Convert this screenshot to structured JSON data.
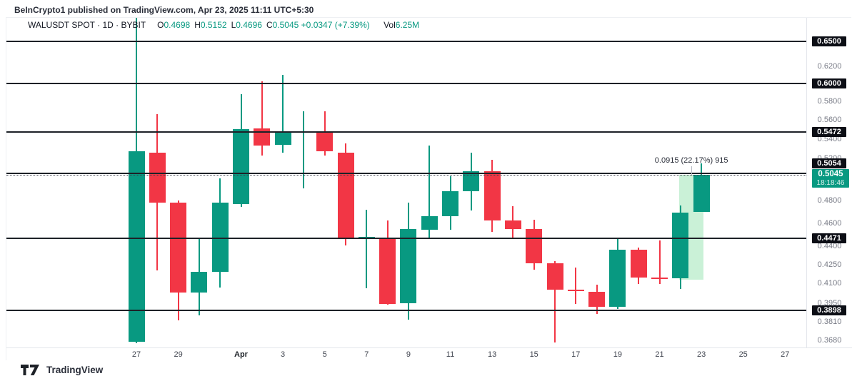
{
  "attribution": "BeInCrypto1 published on TradingView.com, Apr 23, 2025 11:11 UTC+5:30",
  "symbol_bar": {
    "title": "WALUSDT SPOT · 1D · BYBIT",
    "ohlc": [
      {
        "k": "O",
        "v": "0.4698"
      },
      {
        "k": "H",
        "v": "0.5152"
      },
      {
        "k": "L",
        "v": "0.4696"
      },
      {
        "k": "C",
        "v": "0.5045"
      }
    ],
    "change": "+0.0347 (+7.39%)",
    "vol_label": "Vol",
    "vol_value": "6.25M"
  },
  "price_axis": {
    "currency": "USDT",
    "gray_ticks": [
      {
        "label": "0.6200",
        "value": 0.62
      },
      {
        "label": "0.5800",
        "value": 0.58
      },
      {
        "label": "0.5600",
        "value": 0.56
      },
      {
        "label": "0.5400",
        "value": 0.54
      },
      {
        "label": "0.5200",
        "value": 0.52
      },
      {
        "label": "0.4800",
        "value": 0.48
      },
      {
        "label": "0.4600",
        "value": 0.46
      },
      {
        "label": "0.4400",
        "value": 0.44
      },
      {
        "label": "0.4250",
        "value": 0.425
      },
      {
        "label": "0.4100",
        "value": 0.41
      },
      {
        "label": "0.3950",
        "value": 0.395
      },
      {
        "label": "0.3810",
        "value": 0.381
      },
      {
        "label": "0.3680",
        "value": 0.368
      }
    ],
    "current": {
      "label": "0.5045",
      "countdown": "18:18:46",
      "value": 0.5045
    }
  },
  "levels": [
    {
      "label": "0.6500",
      "value": 0.65
    },
    {
      "label": "0.6000",
      "value": 0.6
    },
    {
      "label": "0.5472",
      "value": 0.5472
    },
    {
      "label": "0.5054",
      "value": 0.5054
    },
    {
      "label": "0.4471",
      "value": 0.4471
    },
    {
      "label": "0.3898",
      "value": 0.3898
    }
  ],
  "time_axis": [
    {
      "t": "27",
      "d": 0
    },
    {
      "t": "29",
      "d": 2
    },
    {
      "t": "Apr",
      "d": 5,
      "bold": true
    },
    {
      "t": "3",
      "d": 7
    },
    {
      "t": "5",
      "d": 9
    },
    {
      "t": "7",
      "d": 11
    },
    {
      "t": "9",
      "d": 13
    },
    {
      "t": "11",
      "d": 15
    },
    {
      "t": "13",
      "d": 17
    },
    {
      "t": "15",
      "d": 19
    },
    {
      "t": "17",
      "d": 21
    },
    {
      "t": "19",
      "d": 23
    },
    {
      "t": "21",
      "d": 25
    },
    {
      "t": "23",
      "d": 27
    },
    {
      "t": "25",
      "d": 29
    },
    {
      "t": "27",
      "d": 31
    }
  ],
  "range_tool": {
    "label": "0.0915 (22.17%) 915",
    "price_from": 0.413,
    "price_to": 0.5045,
    "day_from": 25.95,
    "day_to": 27.1
  },
  "chart_data": {
    "type": "candlestick",
    "title": "WALUSDT SPOT 1D BYBIT",
    "ylabel": "USDT",
    "scale": "log",
    "ylim": [
      0.36,
      0.69
    ],
    "x_dates": "daily, Mar 27 2025 - Apr 23 2025",
    "candles": [
      {
        "date": "Mar 27",
        "o": 0.367,
        "h": 0.68,
        "l": 0.366,
        "c": 0.527
      },
      {
        "date": "Mar 28",
        "o": 0.526,
        "h": 0.566,
        "l": 0.4205,
        "c": 0.478
      },
      {
        "date": "Mar 29",
        "o": 0.478,
        "h": 0.48,
        "l": 0.382,
        "c": 0.403
      },
      {
        "date": "Mar 30",
        "o": 0.403,
        "h": 0.447,
        "l": 0.386,
        "c": 0.419
      },
      {
        "date": "Mar 31",
        "o": 0.419,
        "h": 0.501,
        "l": 0.407,
        "c": 0.478
      },
      {
        "date": "Apr 1",
        "o": 0.477,
        "h": 0.588,
        "l": 0.4745,
        "c": 0.55
      },
      {
        "date": "Apr 2",
        "o": 0.551,
        "h": 0.6025,
        "l": 0.523,
        "c": 0.533
      },
      {
        "date": "Apr 3",
        "o": 0.534,
        "h": 0.61,
        "l": 0.526,
        "c": 0.5465
      },
      {
        "date": "Apr 4",
        "o": 0.5465,
        "h": 0.569,
        "l": 0.4915,
        "c": 0.548
      },
      {
        "date": "Apr 5",
        "o": 0.548,
        "h": 0.569,
        "l": 0.523,
        "c": 0.5275
      },
      {
        "date": "Apr 6",
        "o": 0.526,
        "h": 0.5355,
        "l": 0.4405,
        "c": 0.4475
      },
      {
        "date": "Apr 7",
        "o": 0.447,
        "h": 0.472,
        "l": 0.4065,
        "c": 0.448
      },
      {
        "date": "Apr 8",
        "o": 0.4475,
        "h": 0.462,
        "l": 0.394,
        "c": 0.3946
      },
      {
        "date": "Apr 9",
        "o": 0.395,
        "h": 0.478,
        "l": 0.3825,
        "c": 0.455
      },
      {
        "date": "Apr 10",
        "o": 0.4543,
        "h": 0.533,
        "l": 0.4475,
        "c": 0.466
      },
      {
        "date": "Apr 11",
        "o": 0.466,
        "h": 0.503,
        "l": 0.454,
        "c": 0.4886
      },
      {
        "date": "Apr 12",
        "o": 0.4886,
        "h": 0.526,
        "l": 0.4713,
        "c": 0.508
      },
      {
        "date": "Apr 13",
        "o": 0.508,
        "h": 0.519,
        "l": 0.4525,
        "c": 0.462
      },
      {
        "date": "Apr 14",
        "o": 0.462,
        "h": 0.475,
        "l": 0.446,
        "c": 0.455
      },
      {
        "date": "Apr 15",
        "o": 0.455,
        "h": 0.463,
        "l": 0.421,
        "c": 0.426
      },
      {
        "date": "Apr 16",
        "o": 0.426,
        "h": 0.428,
        "l": 0.3665,
        "c": 0.405
      },
      {
        "date": "Apr 17",
        "o": 0.405,
        "h": 0.4225,
        "l": 0.3946,
        "c": 0.404
      },
      {
        "date": "Apr 18",
        "o": 0.4035,
        "h": 0.409,
        "l": 0.387,
        "c": 0.3923
      },
      {
        "date": "Apr 19",
        "o": 0.3923,
        "h": 0.4463,
        "l": 0.3907,
        "c": 0.437
      },
      {
        "date": "Apr 20",
        "o": 0.437,
        "h": 0.4388,
        "l": 0.4098,
        "c": 0.4148
      },
      {
        "date": "Apr 21",
        "o": 0.4145,
        "h": 0.4451,
        "l": 0.4098,
        "c": 0.4135
      },
      {
        "date": "Apr 22",
        "o": 0.4142,
        "h": 0.4758,
        "l": 0.4057,
        "c": 0.4694
      },
      {
        "date": "Apr 23",
        "o": 0.4698,
        "h": 0.5152,
        "l": 0.4696,
        "c": 0.5045
      }
    ]
  },
  "colors": {
    "up": "#089981",
    "down": "#f23645",
    "level_line": "#1d2127",
    "highlight": "rgba(129, 222, 160, 0.42)",
    "badge_bg": "#0c0e15",
    "current_badge_bg": "#089981"
  },
  "footer": {
    "brand": "TradingView"
  }
}
